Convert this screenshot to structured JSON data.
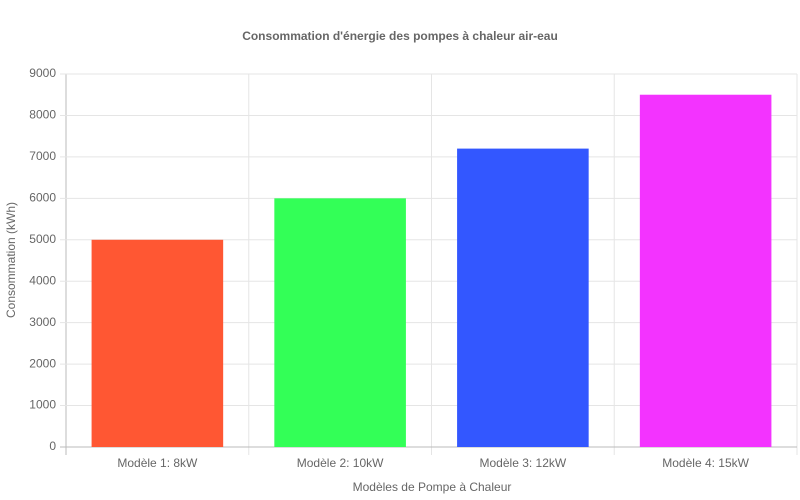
{
  "chart_data": {
    "type": "bar",
    "title": "Consommation d'énergie des pompes à chaleur air-eau",
    "x_label": "Modèles de Pompe à Chaleur",
    "y_label": "Consommation (kWh)",
    "categories": [
      "Modèle 1: 8kW",
      "Modèle 2: 10kW",
      "Modèle 3: 12kW",
      "Modèle 4: 15kW"
    ],
    "values": [
      5000,
      6000,
      7200,
      8500
    ],
    "colors": [
      "#FF5733",
      "#33FF57",
      "#3357FF",
      "#F333FF"
    ],
    "ylim": [
      0,
      9000
    ],
    "yticks": [
      0,
      1000,
      2000,
      3000,
      4000,
      5000,
      6000,
      7000,
      8000,
      9000
    ],
    "grid": true
  }
}
